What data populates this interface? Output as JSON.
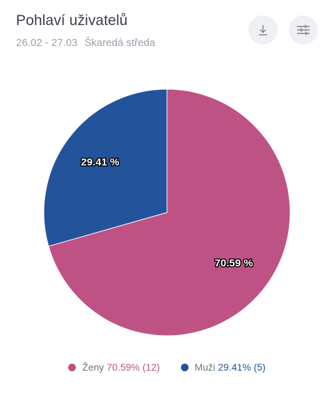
{
  "header": {
    "title": "Pohlaví uživatelů",
    "date_range": "26.02 - 27.03",
    "segment": "Škaredá středa"
  },
  "toolbar": {
    "download_icon": "download-icon",
    "settings_icon": "sliders-icon"
  },
  "chart_data": {
    "type": "pie",
    "title": "Pohlaví uživatelů",
    "series": [
      {
        "name": "Ženy",
        "value": 12,
        "percent": 70.59,
        "label": "70.59 %",
        "legend_stat": "70.59% (12)",
        "color": "#bf5284"
      },
      {
        "name": "Muži",
        "value": 5,
        "percent": 29.41,
        "label": "29.41 %",
        "legend_stat": "29.41% (5)",
        "color": "#23539a"
      }
    ],
    "legend_position": "bottom"
  }
}
